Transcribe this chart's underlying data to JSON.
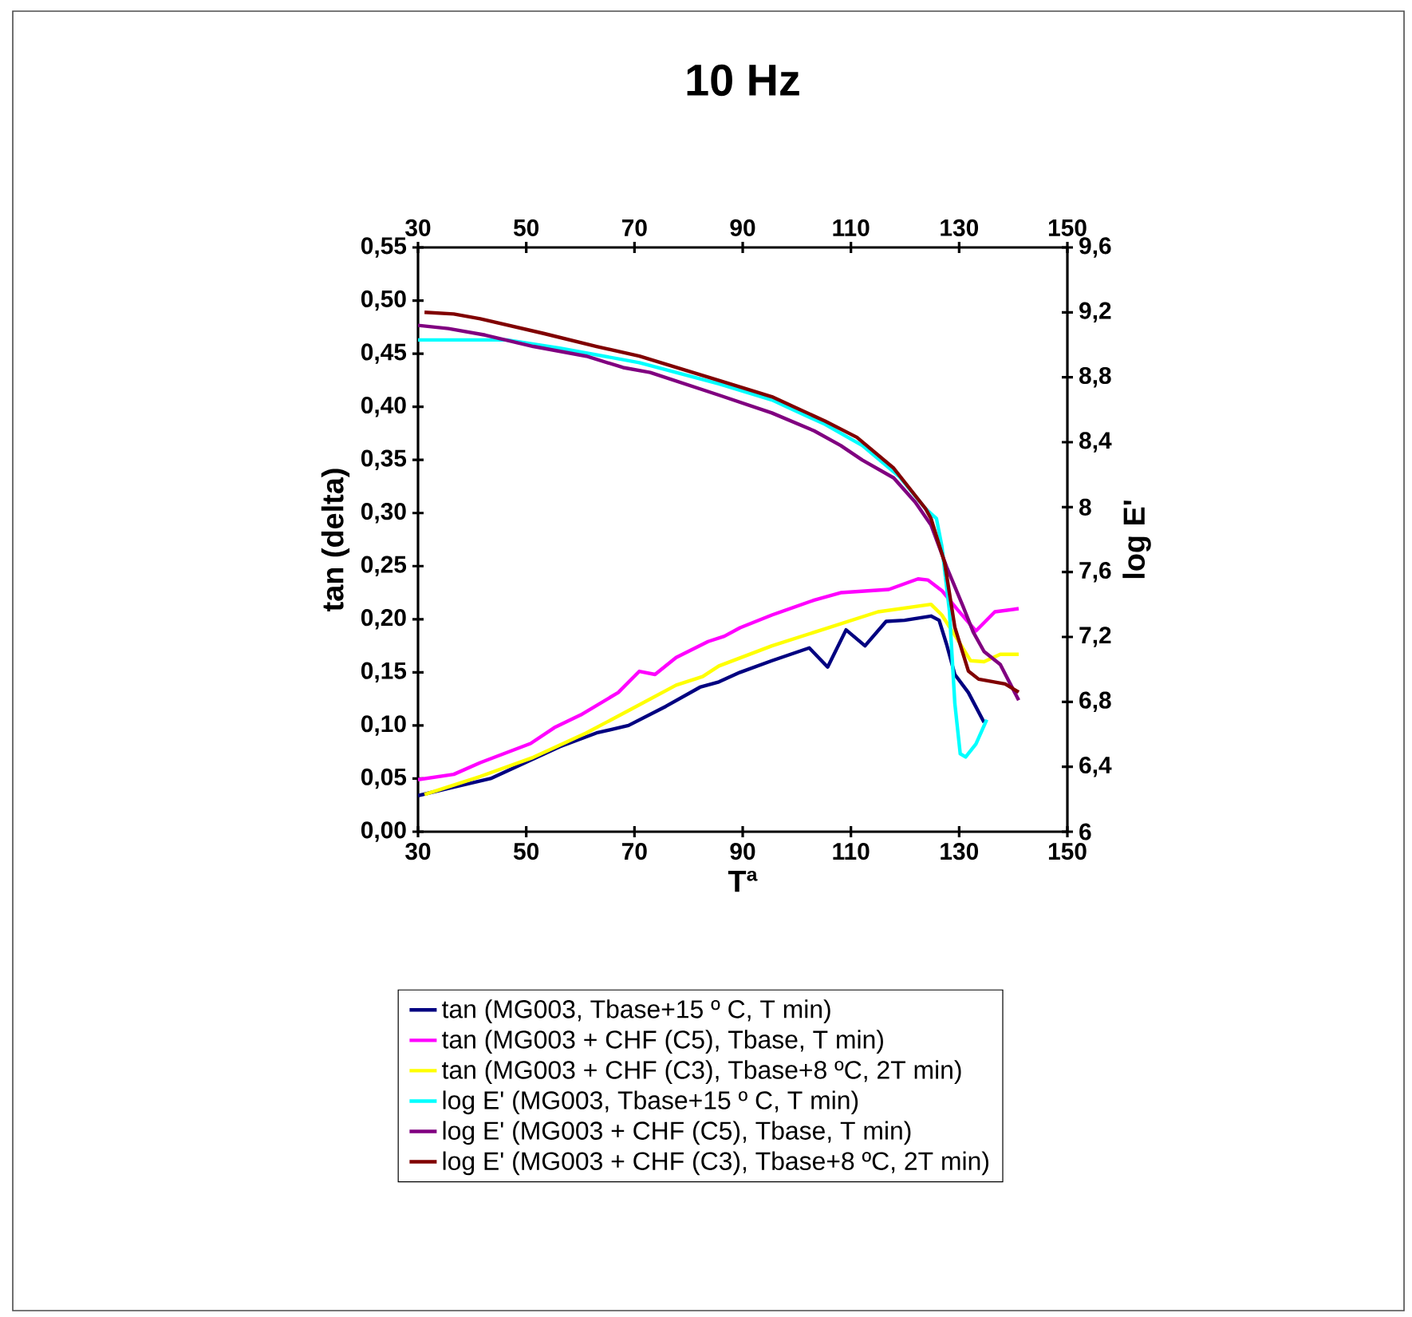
{
  "chart_data": {
    "type": "line",
    "title": "10 Hz",
    "xlabel": "Tª",
    "ylabel": "tan (delta)",
    "y2label": "log E'",
    "xlim": [
      30,
      150
    ],
    "xticks": [
      30,
      50,
      70,
      90,
      110,
      130,
      150
    ],
    "x2lim": [
      30,
      150
    ],
    "x2ticks": [
      30,
      50,
      70,
      90,
      110,
      130,
      150
    ],
    "ylim": [
      0,
      0.55
    ],
    "yticks": [
      {
        "value": 0,
        "label": "0,00"
      },
      {
        "value": 0.05,
        "label": "0,05"
      },
      {
        "value": 0.1,
        "label": "0,10"
      },
      {
        "value": 0.15,
        "label": "0,15"
      },
      {
        "value": 0.2,
        "label": "0,20"
      },
      {
        "value": 0.25,
        "label": "0,25"
      },
      {
        "value": 0.3,
        "label": "0,30"
      },
      {
        "value": 0.35,
        "label": "0,35"
      },
      {
        "value": 0.4,
        "label": "0,40"
      },
      {
        "value": 0.45,
        "label": "0,45"
      },
      {
        "value": 0.5,
        "label": "0,50"
      },
      {
        "value": 0.55,
        "label": "0,55"
      }
    ],
    "y2lim": [
      6,
      9.6
    ],
    "y2ticks": [
      6,
      {
        "value": 6.4,
        "label": "6,4"
      },
      {
        "value": 6.8,
        "label": "6,8"
      },
      {
        "value": 7.2,
        "label": "7,2"
      },
      {
        "value": 7.6,
        "label": "7,6"
      },
      8,
      {
        "value": 8.4,
        "label": "8,4"
      },
      {
        "value": 8.8,
        "label": "8,8"
      },
      {
        "value": 9.2,
        "label": "9,2"
      },
      {
        "value": 9.6,
        "label": "9,6"
      }
    ],
    "legend": "bottom",
    "series": [
      {
        "name": "tan (MG003, Tbase+15 º C, T min)",
        "color": "#000080",
        "x": [
          30,
          36.6,
          43.4,
          49.8,
          56.2,
          63.0,
          68.9,
          75.8,
          82.1,
          85.6,
          89.5,
          95.4,
          102.3,
          105.7,
          109.1,
          112.6,
          116.5,
          119.9,
          124.8,
          126.3,
          127.7,
          129.2,
          131.7,
          134.6
        ],
        "values": [
          0.034,
          0.042,
          0.05,
          0.065,
          0.08,
          0.093,
          0.1,
          0.118,
          0.136,
          0.141,
          0.15,
          0.161,
          0.173,
          0.155,
          0.19,
          0.175,
          0.198,
          0.199,
          0.203,
          0.199,
          0.176,
          0.148,
          0.131,
          0.103
        ]
      },
      {
        "name": "tan (MG003 + CHF (C5), Tbase, T min)",
        "color": "#ff00ff",
        "x": [
          30,
          36.6,
          41.5,
          50.8,
          55.2,
          60.1,
          67.0,
          70.9,
          73.8,
          77.7,
          83.6,
          86.6,
          89.5,
          95.4,
          103.2,
          108.1,
          117.0,
          122.4,
          124.2,
          126.8,
          129.7,
          133.1,
          136.6,
          141.0
        ],
        "values": [
          0.049,
          0.054,
          0.065,
          0.083,
          0.098,
          0.11,
          0.131,
          0.151,
          0.148,
          0.164,
          0.179,
          0.184,
          0.192,
          0.204,
          0.218,
          0.225,
          0.228,
          0.238,
          0.237,
          0.227,
          0.209,
          0.189,
          0.207,
          0.21
        ]
      },
      {
        "name": "tan (MG003 + CHF (C3), Tbase+8 ºC, 2T min)",
        "color": "#ffff00",
        "x": [
          31.2,
          41.5,
          51.3,
          61.1,
          68.9,
          77.7,
          82.6,
          85.6,
          95.4,
          105.2,
          115.0,
          124.8,
          126.8,
          129.7,
          132.1,
          134.6,
          137.6,
          141.0
        ],
        "values": [
          0.035,
          0.052,
          0.07,
          0.093,
          0.114,
          0.138,
          0.146,
          0.156,
          0.175,
          0.191,
          0.207,
          0.214,
          0.204,
          0.181,
          0.161,
          0.16,
          0.167,
          0.167
        ]
      },
      {
        "name": "log E' (MG003, Tbase+15 º C, T min)",
        "color": "#00ffff",
        "axis": "y2",
        "x": [
          30,
          46.4,
          56.2,
          70.9,
          85.6,
          95.4,
          105.2,
          112.1,
          118.9,
          123.8,
          125.8,
          126.8,
          128.2,
          129.2,
          130.2,
          131.2,
          133.1,
          135.1
        ],
        "values": [
          9.03,
          9.03,
          8.98,
          8.89,
          8.76,
          8.66,
          8.51,
          8.38,
          8.19,
          7.99,
          7.93,
          7.76,
          7.36,
          6.79,
          6.48,
          6.46,
          6.54,
          6.69
        ]
      },
      {
        "name": "log E' (MG003 + CHF (C5), Tbase, T min)",
        "color": "#800080",
        "axis": "y2",
        "x": [
          30,
          35.6,
          42.4,
          51.3,
          61.1,
          67.9,
          72.9,
          85.6,
          95.4,
          103.2,
          108.1,
          112.1,
          117.9,
          121.9,
          124.8,
          127.7,
          130.7,
          132.6,
          134.6,
          137.6,
          141.0
        ],
        "values": [
          9.12,
          9.1,
          9.06,
          8.99,
          8.93,
          8.86,
          8.83,
          8.69,
          8.58,
          8.47,
          8.38,
          8.29,
          8.18,
          8.03,
          7.89,
          7.63,
          7.39,
          7.23,
          7.11,
          7.03,
          6.81
        ]
      },
      {
        "name": "log E' (MG003 + CHF (C3), Tbase+8 ºC, 2T min)",
        "color": "#800000",
        "axis": "y2",
        "x": [
          31.2,
          36.6,
          41.5,
          53.2,
          63.0,
          70.9,
          85.6,
          95.4,
          105.2,
          111.1,
          117.9,
          123.8,
          124.8,
          127.3,
          129.2,
          131.7,
          133.6,
          138.5,
          141.0
        ],
        "values": [
          9.2,
          9.19,
          9.16,
          9.07,
          8.99,
          8.93,
          8.78,
          8.68,
          8.53,
          8.43,
          8.24,
          7.99,
          7.93,
          7.66,
          7.26,
          6.99,
          6.94,
          6.91,
          6.86
        ]
      }
    ]
  }
}
